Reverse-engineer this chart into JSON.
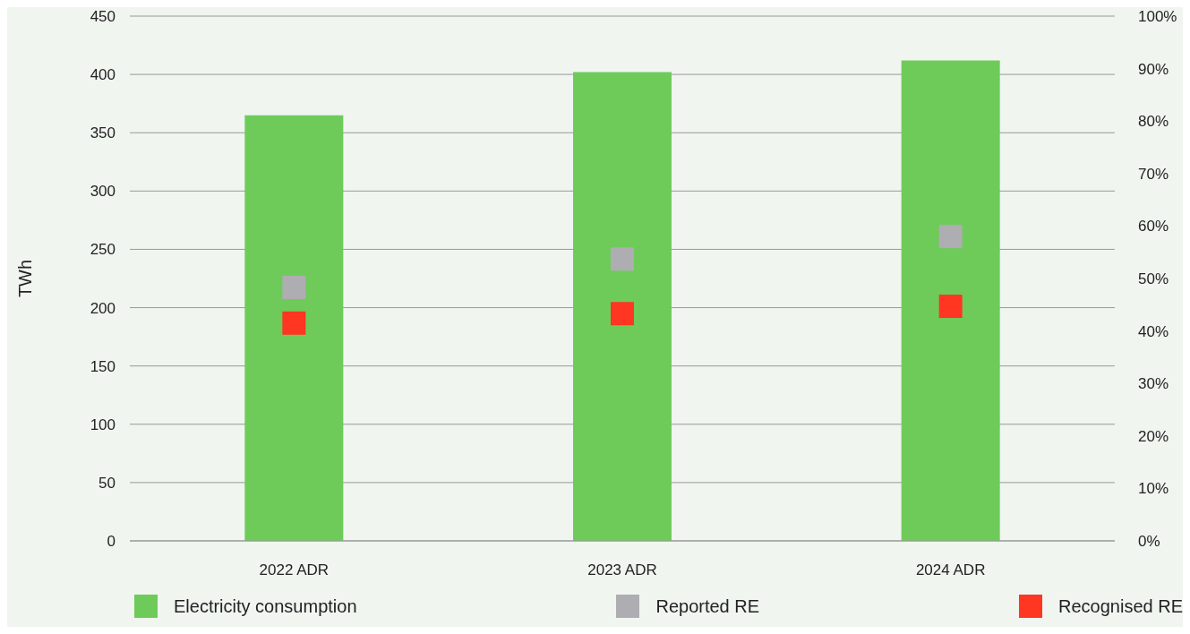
{
  "chart_data": {
    "type": "bar",
    "ylabel": "TWh",
    "categories": [
      "2022 ADR",
      "2023 ADR",
      "2024 ADR"
    ],
    "series": [
      {
        "name": "Electricity consumption",
        "color": "#6ecb5a",
        "values": [
          365,
          402,
          412
        ]
      },
      {
        "name": "Reported RE",
        "type": "scatter",
        "axis": "y2",
        "color": "#aeadb2",
        "values": [
          48.3,
          53.7,
          58
        ]
      },
      {
        "name": "Recognised RE",
        "type": "scatter",
        "axis": "y2",
        "color": "#ff3621",
        "values": [
          41.5,
          43.3,
          44.7
        ]
      }
    ],
    "ylim": [
      0,
      450
    ],
    "yticks": [
      0,
      50,
      100,
      150,
      200,
      250,
      300,
      350,
      400,
      450
    ],
    "y2lim": [
      0,
      100
    ],
    "y2ticks": [
      {
        "value": 0,
        "label": "0%"
      },
      {
        "value": 10,
        "label": "10%"
      },
      {
        "value": 20,
        "label": "20%"
      },
      {
        "value": 30,
        "label": "30%"
      },
      {
        "value": 40,
        "label": "40%"
      },
      {
        "value": 50,
        "label": "50%"
      },
      {
        "value": 60,
        "label": "60%"
      },
      {
        "value": 70,
        "label": "70%"
      },
      {
        "value": 80,
        "label": "80%"
      },
      {
        "value": 90,
        "label": "90%"
      },
      {
        "value": 100,
        "label": "100%"
      }
    ],
    "grid": "y",
    "marker": "square",
    "legend": "bottom"
  }
}
